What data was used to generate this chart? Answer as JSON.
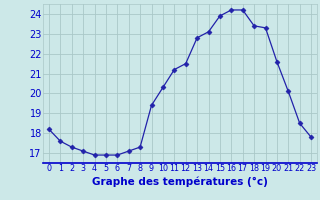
{
  "hours": [
    0,
    1,
    2,
    3,
    4,
    5,
    6,
    7,
    8,
    9,
    10,
    11,
    12,
    13,
    14,
    15,
    16,
    17,
    18,
    19,
    20,
    21,
    22,
    23
  ],
  "temperatures": [
    18.2,
    17.6,
    17.3,
    17.1,
    16.9,
    16.9,
    16.9,
    17.1,
    17.3,
    19.4,
    20.3,
    21.2,
    21.5,
    22.8,
    23.1,
    23.9,
    24.2,
    24.2,
    23.4,
    23.3,
    21.6,
    20.1,
    18.5,
    17.8
  ],
  "ylim": [
    16.5,
    24.5
  ],
  "yticks": [
    17,
    18,
    19,
    20,
    21,
    22,
    23,
    24
  ],
  "xtick_labels": [
    "0",
    "1",
    "2",
    "3",
    "4",
    "5",
    "6",
    "7",
    "8",
    "9",
    "10",
    "11",
    "12",
    "13",
    "14",
    "15",
    "16",
    "17",
    "18",
    "19",
    "20",
    "21",
    "22",
    "23"
  ],
  "xlabel": "Graphe des températures (°c)",
  "line_color": "#2222aa",
  "marker": "D",
  "marker_size": 2.5,
  "bg_color": "#cce8e8",
  "grid_color": "#aac8c8",
  "axis_label_color": "#0000cc",
  "tick_color": "#0000cc",
  "xlabel_fontsize": 7.5,
  "ytick_fontsize": 7.0,
  "xtick_fontsize": 5.8
}
